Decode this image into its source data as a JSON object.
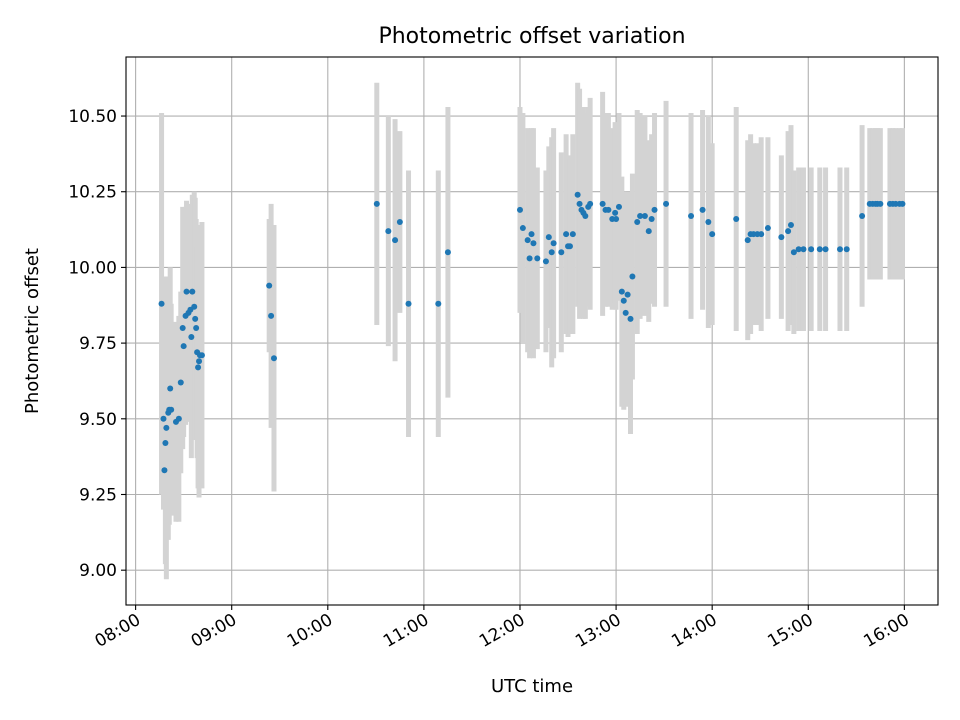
{
  "chart_data": {
    "type": "scatter",
    "title": "Photometric offset variation",
    "xlabel": "UTC time",
    "ylabel": "Photometric offset",
    "grid": true,
    "xlim": [
      7.9,
      16.35
    ],
    "ylim": [
      8.885,
      10.695
    ],
    "x_ticks": [
      {
        "value": 8,
        "label": "08:00"
      },
      {
        "value": 9,
        "label": "09:00"
      },
      {
        "value": 10,
        "label": "10:00"
      },
      {
        "value": 11,
        "label": "11:00"
      },
      {
        "value": 12,
        "label": "12:00"
      },
      {
        "value": 13,
        "label": "13:00"
      },
      {
        "value": 14,
        "label": "14:00"
      },
      {
        "value": 15,
        "label": "15:00"
      },
      {
        "value": 16,
        "label": "16:00"
      }
    ],
    "y_ticks": [
      {
        "value": 9.0,
        "label": "9.00"
      },
      {
        "value": 9.25,
        "label": "9.25"
      },
      {
        "value": 9.5,
        "label": "9.50"
      },
      {
        "value": 9.75,
        "label": "9.75"
      },
      {
        "value": 10.0,
        "label": "10.00"
      },
      {
        "value": 10.25,
        "label": "10.25"
      },
      {
        "value": 10.5,
        "label": "10.50"
      }
    ],
    "colors": {
      "point": "#1f77b4",
      "errorbar": "#d3d3d3",
      "grid": "#b0b0b0"
    },
    "points": [
      [
        8.27,
        9.88,
        0.63
      ],
      [
        8.29,
        9.5,
        0.3
      ],
      [
        8.3,
        9.33,
        0.12
      ],
      [
        8.31,
        9.42,
        0.4
      ],
      [
        8.32,
        9.47,
        0.5
      ],
      [
        8.34,
        9.52,
        0.42
      ],
      [
        8.35,
        9.53,
        0.38
      ],
      [
        8.36,
        9.6,
        0.4
      ],
      [
        8.37,
        9.53,
        0.35
      ],
      [
        8.42,
        9.49,
        0.33
      ],
      [
        8.45,
        9.5,
        0.34
      ],
      [
        8.47,
        9.62,
        0.3
      ],
      [
        8.49,
        9.8,
        0.4
      ],
      [
        8.5,
        9.74,
        0.3
      ],
      [
        8.52,
        9.84,
        0.36
      ],
      [
        8.53,
        9.92,
        0.3
      ],
      [
        8.55,
        9.85,
        0.36
      ],
      [
        8.57,
        9.86,
        0.34
      ],
      [
        8.58,
        9.77,
        0.4
      ],
      [
        8.59,
        9.92,
        0.32
      ],
      [
        8.61,
        9.87,
        0.38
      ],
      [
        8.62,
        9.83,
        0.4
      ],
      [
        8.63,
        9.8,
        0.36
      ],
      [
        8.64,
        9.72,
        0.35
      ],
      [
        8.65,
        9.67,
        0.4
      ],
      [
        8.66,
        9.69,
        0.45
      ],
      [
        8.67,
        9.71,
        0.4
      ],
      [
        8.69,
        9.71,
        0.44
      ],
      [
        9.39,
        9.94,
        0.22
      ],
      [
        9.41,
        9.84,
        0.37
      ],
      [
        9.44,
        9.7,
        0.44
      ],
      [
        10.51,
        10.21,
        0.4
      ],
      [
        10.63,
        10.12,
        0.38
      ],
      [
        10.7,
        10.09,
        0.4
      ],
      [
        10.75,
        10.15,
        0.3
      ],
      [
        10.84,
        9.88,
        0.44
      ],
      [
        11.15,
        9.88,
        0.44
      ],
      [
        11.25,
        10.05,
        0.48
      ],
      [
        12.0,
        10.19,
        0.34
      ],
      [
        12.03,
        10.13,
        0.38
      ],
      [
        12.08,
        10.09,
        0.37
      ],
      [
        12.1,
        10.03,
        0.33
      ],
      [
        12.12,
        10.11,
        0.35
      ],
      [
        12.14,
        10.08,
        0.38
      ],
      [
        12.18,
        10.03,
        0.3
      ],
      [
        12.27,
        10.02,
        0.3
      ],
      [
        12.3,
        10.1,
        0.3
      ],
      [
        12.33,
        10.05,
        0.38
      ],
      [
        12.35,
        10.08,
        0.38
      ],
      [
        12.43,
        10.05,
        0.33
      ],
      [
        12.48,
        10.11,
        0.33
      ],
      [
        12.5,
        10.07,
        0.3
      ],
      [
        12.52,
        10.07,
        0.29
      ],
      [
        12.55,
        10.11,
        0.33
      ],
      [
        12.6,
        10.24,
        0.37
      ],
      [
        12.62,
        10.21,
        0.38
      ],
      [
        12.64,
        10.19,
        0.33
      ],
      [
        12.66,
        10.18,
        0.35
      ],
      [
        12.68,
        10.17,
        0.34
      ],
      [
        12.71,
        10.2,
        0.33
      ],
      [
        12.73,
        10.21,
        0.35
      ],
      [
        12.86,
        10.21,
        0.37
      ],
      [
        12.89,
        10.19,
        0.32
      ],
      [
        12.92,
        10.19,
        0.32
      ],
      [
        12.96,
        10.16,
        0.3
      ],
      [
        12.99,
        10.18,
        0.3
      ],
      [
        13.0,
        10.16,
        0.3
      ],
      [
        13.03,
        10.2,
        0.31
      ],
      [
        13.06,
        9.92,
        0.38
      ],
      [
        13.08,
        9.89,
        0.36
      ],
      [
        13.1,
        9.85,
        0.31
      ],
      [
        13.12,
        9.91,
        0.34
      ],
      [
        13.15,
        9.83,
        0.38
      ],
      [
        13.17,
        9.97,
        0.34
      ],
      [
        13.22,
        10.15,
        0.37
      ],
      [
        13.25,
        10.17,
        0.34
      ],
      [
        13.3,
        10.17,
        0.33
      ],
      [
        13.34,
        10.12,
        0.3
      ],
      [
        13.37,
        10.16,
        0.28
      ],
      [
        13.4,
        10.19,
        0.32
      ],
      [
        13.52,
        10.21,
        0.34
      ],
      [
        13.78,
        10.17,
        0.34
      ],
      [
        13.9,
        10.19,
        0.33
      ],
      [
        13.96,
        10.15,
        0.35
      ],
      [
        14.0,
        10.11,
        0.3
      ],
      [
        14.25,
        10.16,
        0.37
      ],
      [
        14.37,
        10.09,
        0.33
      ],
      [
        14.4,
        10.11,
        0.33
      ],
      [
        14.43,
        10.11,
        0.3
      ],
      [
        14.47,
        10.11,
        0.3
      ],
      [
        14.51,
        10.11,
        0.32
      ],
      [
        14.58,
        10.13,
        0.3
      ],
      [
        14.72,
        10.1,
        0.27
      ],
      [
        14.79,
        10.12,
        0.33
      ],
      [
        14.82,
        10.14,
        0.33
      ],
      [
        14.85,
        10.05,
        0.27
      ],
      [
        14.9,
        10.06,
        0.27
      ],
      [
        14.95,
        10.06,
        0.27
      ],
      [
        15.03,
        10.06,
        0.27
      ],
      [
        15.12,
        10.06,
        0.27
      ],
      [
        15.18,
        10.06,
        0.27
      ],
      [
        15.33,
        10.06,
        0.27
      ],
      [
        15.4,
        10.06,
        0.27
      ],
      [
        15.56,
        10.17,
        0.3
      ],
      [
        15.64,
        10.21,
        0.25
      ],
      [
        15.67,
        10.21,
        0.25
      ],
      [
        15.7,
        10.21,
        0.25
      ],
      [
        15.72,
        10.21,
        0.25
      ],
      [
        15.75,
        10.21,
        0.25
      ],
      [
        15.85,
        10.21,
        0.25
      ],
      [
        15.88,
        10.21,
        0.25
      ],
      [
        15.91,
        10.21,
        0.25
      ],
      [
        15.95,
        10.21,
        0.25
      ],
      [
        15.98,
        10.21,
        0.25
      ]
    ]
  }
}
